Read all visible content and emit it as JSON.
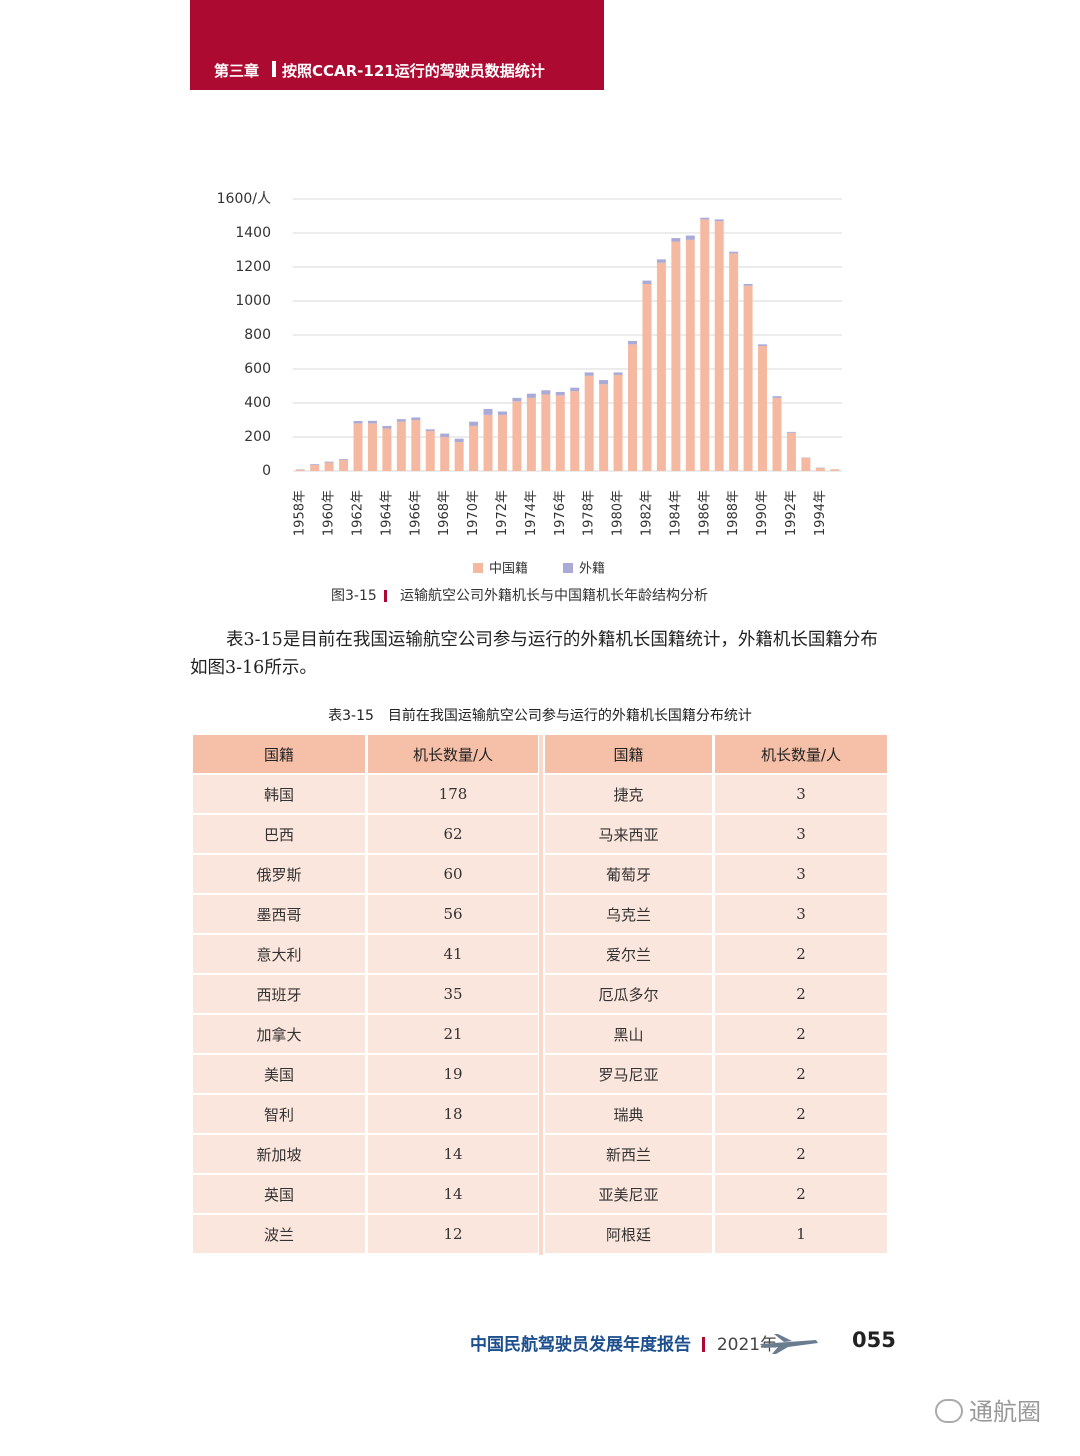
{
  "header": {
    "chapter": "第三章",
    "title": "按照CCAR-121运行的驾驶员数据统计"
  },
  "chart_data": {
    "type": "stacked_bar",
    "figure_label": "图3-15",
    "title": "运输航空公司外籍机长与中国籍机长年龄结构分析",
    "categories": [
      "1958年",
      null,
      "1960年",
      null,
      "1962年",
      null,
      "1964年",
      null,
      "1966年",
      null,
      "1968年",
      null,
      "1970年",
      null,
      "1972年",
      null,
      "1974年",
      null,
      "1976年",
      null,
      "1978年",
      null,
      "1980年",
      null,
      "1982年",
      null,
      "1984年",
      null,
      "1986年",
      null,
      "1988年",
      null,
      "1990年",
      null,
      "1992年",
      null,
      "1994年",
      null
    ],
    "series": [
      {
        "name": "中国籍",
        "color": "#f5b9a2",
        "values": [
          8,
          35,
          50,
          65,
          280,
          280,
          250,
          290,
          300,
          235,
          200,
          170,
          265,
          330,
          330,
          410,
          430,
          450,
          445,
          470,
          560,
          510,
          565,
          745,
          1100,
          1225,
          1350,
          1360,
          1480,
          1470,
          1280,
          1090,
          735,
          430,
          225,
          78,
          18,
          9
        ]
      },
      {
        "name": "外籍",
        "color": "#aaaad8",
        "values": [
          2,
          5,
          5,
          5,
          14,
          15,
          15,
          15,
          15,
          10,
          20,
          20,
          25,
          35,
          20,
          20,
          25,
          25,
          20,
          20,
          20,
          25,
          15,
          20,
          20,
          20,
          20,
          25,
          10,
          10,
          10,
          10,
          10,
          10,
          5,
          2,
          2,
          1
        ]
      }
    ],
    "ylim": [
      0,
      1600
    ],
    "yticks": [
      0,
      200,
      400,
      600,
      800,
      1000,
      1200,
      1400,
      {
        "value": 1600,
        "label": "1600/人"
      }
    ],
    "grid": true,
    "legend": "bottom"
  },
  "paragraph": "表3-15是目前在我国运输航空公司参与运行的外籍机长国籍统计，外籍机长国籍分布如图3-16所示。",
  "table": {
    "label": "表3-15",
    "title": "目前在我国运输航空公司参与运行的外籍机长国籍分布统计",
    "header": [
      "国籍",
      "机长数量/人",
      "国籍",
      "机长数量/人"
    ],
    "rows": [
      [
        "韩国",
        178,
        "捷克",
        3
      ],
      [
        "巴西",
        62,
        "马来西亚",
        3
      ],
      [
        "俄罗斯",
        60,
        "葡萄牙",
        3
      ],
      [
        "墨西哥",
        56,
        "乌克兰",
        3
      ],
      [
        "意大利",
        41,
        "爱尔兰",
        2
      ],
      [
        "西班牙",
        35,
        "厄瓜多尔",
        2
      ],
      [
        "加拿大",
        21,
        "黑山",
        2
      ],
      [
        "美国",
        19,
        "罗马尼亚",
        2
      ],
      [
        "智利",
        18,
        "瑞典",
        2
      ],
      [
        "新加坡",
        14,
        "新西兰",
        2
      ],
      [
        "英国",
        14,
        "亚美尼亚",
        2
      ],
      [
        "波兰",
        12,
        "阿根廷",
        1
      ]
    ]
  },
  "footer": {
    "report": "中国民航驾驶员发展年度报告",
    "year": "2021年",
    "page": "055"
  },
  "watermark": "通航圈"
}
